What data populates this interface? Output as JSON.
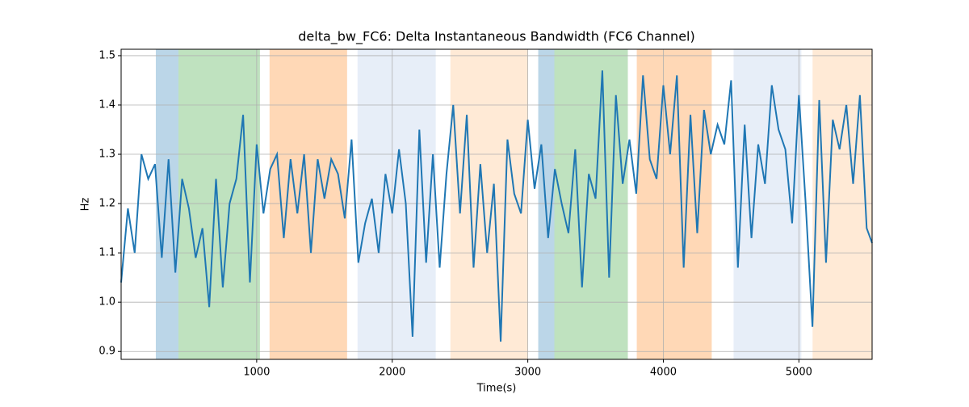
{
  "chart_data": {
    "type": "line",
    "title": "delta_bw_FC6: Delta Instantaneous Bandwidth (FC6 Channel)",
    "x_label": "Time(s)",
    "y_label": "Hz",
    "x": [
      0,
      50,
      100,
      150,
      200,
      250,
      300,
      350,
      400,
      450,
      500,
      550,
      600,
      650,
      700,
      750,
      800,
      850,
      900,
      950,
      1000,
      1050,
      1100,
      1150,
      1200,
      1250,
      1300,
      1350,
      1400,
      1450,
      1500,
      1550,
      1600,
      1650,
      1700,
      1750,
      1800,
      1850,
      1900,
      1950,
      2000,
      2050,
      2100,
      2150,
      2200,
      2250,
      2300,
      2350,
      2400,
      2450,
      2500,
      2550,
      2600,
      2650,
      2700,
      2750,
      2800,
      2850,
      2900,
      2950,
      3000,
      3050,
      3100,
      3150,
      3200,
      3250,
      3300,
      3350,
      3400,
      3450,
      3500,
      3550,
      3600,
      3650,
      3700,
      3750,
      3800,
      3850,
      3900,
      3950,
      4000,
      4050,
      4100,
      4150,
      4200,
      4250,
      4300,
      4350,
      4400,
      4450,
      4500,
      4550,
      4600,
      4650,
      4700,
      4750,
      4800,
      4850,
      4900,
      4950,
      5000,
      5050,
      5100,
      5150,
      5200,
      5250,
      5300,
      5350,
      5400,
      5450,
      5500,
      5540
    ],
    "series": [
      {
        "name": "delta_bw_FC6",
        "color": "#1f77b4",
        "values": [
          1.04,
          1.19,
          1.1,
          1.3,
          1.25,
          1.28,
          1.09,
          1.29,
          1.06,
          1.25,
          1.19,
          1.09,
          1.15,
          0.99,
          1.25,
          1.03,
          1.2,
          1.25,
          1.38,
          1.04,
          1.32,
          1.18,
          1.27,
          1.3,
          1.13,
          1.29,
          1.18,
          1.3,
          1.1,
          1.29,
          1.21,
          1.29,
          1.26,
          1.17,
          1.33,
          1.08,
          1.16,
          1.21,
          1.1,
          1.26,
          1.18,
          1.31,
          1.2,
          0.93,
          1.35,
          1.08,
          1.3,
          1.07,
          1.26,
          1.4,
          1.18,
          1.38,
          1.07,
          1.28,
          1.1,
          1.24,
          0.92,
          1.33,
          1.22,
          1.18,
          1.37,
          1.23,
          1.32,
          1.13,
          1.27,
          1.2,
          1.14,
          1.31,
          1.03,
          1.26,
          1.21,
          1.47,
          1.05,
          1.42,
          1.24,
          1.33,
          1.22,
          1.46,
          1.29,
          1.25,
          1.44,
          1.3,
          1.46,
          1.07,
          1.38,
          1.14,
          1.39,
          1.3,
          1.36,
          1.32,
          1.45,
          1.07,
          1.36,
          1.13,
          1.32,
          1.24,
          1.44,
          1.35,
          1.31,
          1.16,
          1.42,
          1.2,
          0.95,
          1.41,
          1.08,
          1.37,
          1.31,
          1.4,
          1.24,
          1.42,
          1.15,
          1.12
        ]
      }
    ],
    "spans": [
      {
        "x0": 256,
        "x1": 423,
        "color": "#1f77b4",
        "alpha": 0.3
      },
      {
        "x0": 423,
        "x1": 1024,
        "color": "#2ca02c",
        "alpha": 0.3
      },
      {
        "x0": 1095,
        "x1": 1667,
        "color": "#ff7f0e",
        "alpha": 0.3
      },
      {
        "x0": 1744,
        "x1": 2321,
        "color": "#aec7e8",
        "alpha": 0.3
      },
      {
        "x0": 2429,
        "x1": 3000,
        "color": "#ffbb78",
        "alpha": 0.3
      },
      {
        "x0": 3077,
        "x1": 3196,
        "color": "#1f77b4",
        "alpha": 0.3
      },
      {
        "x0": 3196,
        "x1": 3738,
        "color": "#2ca02c",
        "alpha": 0.3
      },
      {
        "x0": 3804,
        "x1": 4357,
        "color": "#ff7f0e",
        "alpha": 0.3
      },
      {
        "x0": 4518,
        "x1": 5018,
        "color": "#aec7e8",
        "alpha": 0.3
      },
      {
        "x0": 5101,
        "x1": 5540,
        "color": "#ffbb78",
        "alpha": 0.3
      }
    ],
    "xlim": [
      0,
      5540
    ],
    "ylim": [
      0.884,
      1.513
    ],
    "xticks": [
      1000,
      2000,
      3000,
      4000,
      5000
    ],
    "yticks": [
      0.9,
      {
        "value": 1,
        "label": "1.0"
      },
      1.1,
      1.2,
      1.3,
      1.4,
      1.5
    ],
    "grid": true
  }
}
